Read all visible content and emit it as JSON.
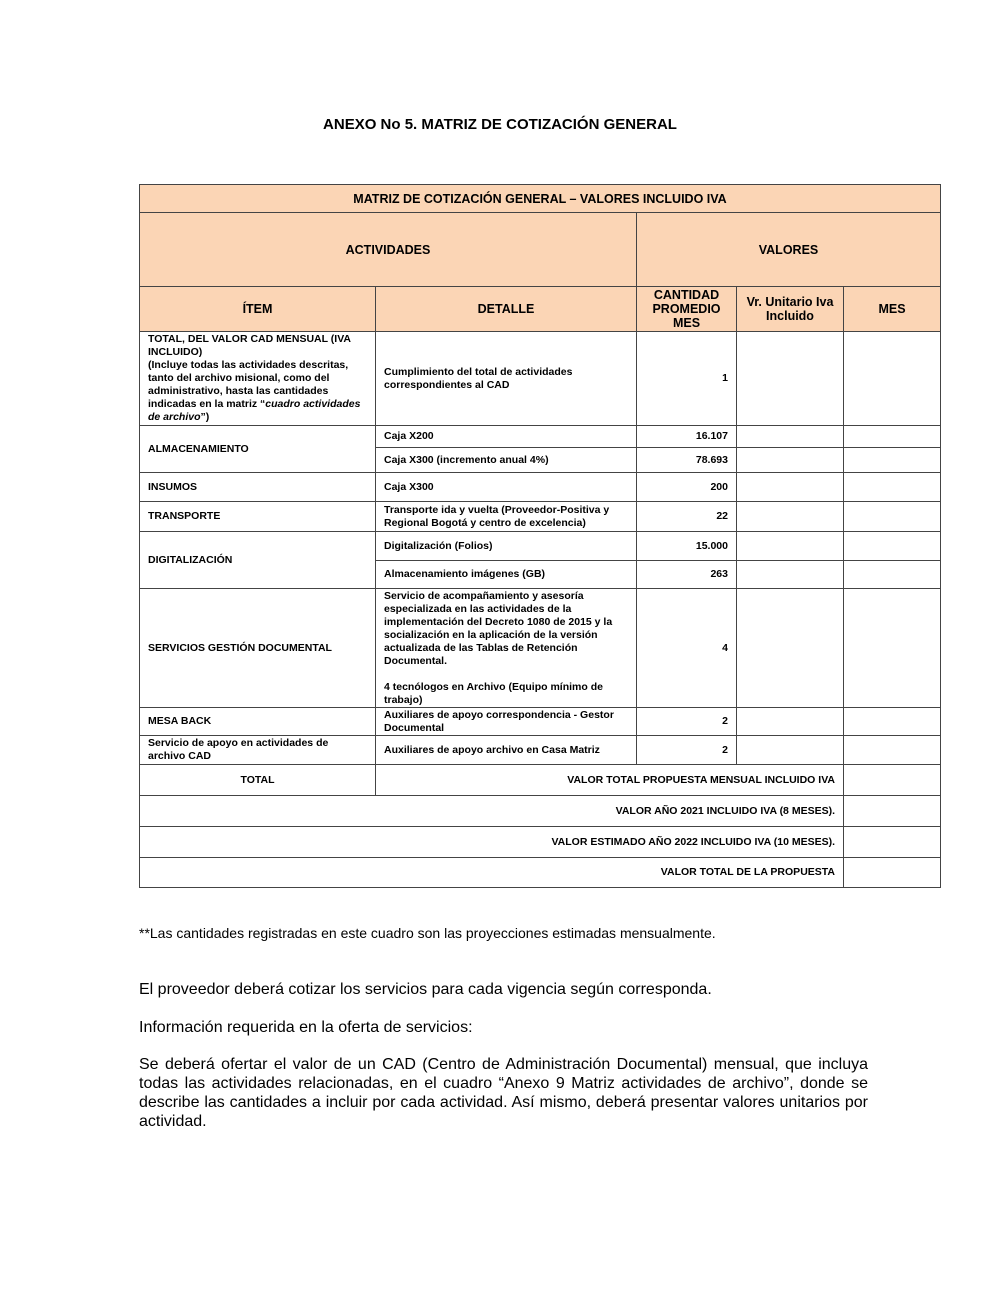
{
  "title": "ANEXO No 5. MATRIZ DE COTIZACIÓN GENERAL",
  "table": {
    "caption": "MATRIZ DE COTIZACIÓN GENERAL – VALORES INCLUIDO IVA",
    "group_actividades": "ACTIVIDADES",
    "group_valores": "VALORES",
    "headers": [
      "ÍTEM",
      "DETALLE",
      "CANTIDAD PROMEDIO MES",
      "Vr. Unitario Iva Incluido",
      "MES"
    ],
    "header_fill": "#FBD5B5",
    "row_total_cad": {
      "item_bold": "TOTAL, DEL VALOR CAD MENSUAL (IVA INCLUIDO)",
      "item_text": "(Incluye todas las actividades descritas, tanto del archivo misional, como del administrativo, hasta las cantidades indicadas en la matriz “",
      "item_italic": "cuadro actividades de archivo",
      "item_end": "”)",
      "detalle": "Cumplimiento del total de actividades correspondientes al CAD",
      "cantidad": "1"
    },
    "rows": [
      {
        "item": "ALMACENAMIENTO",
        "detalle": "Caja X200",
        "cantidad": "16.107"
      },
      {
        "item": "",
        "detalle": "Caja X300 (incremento anual 4%)",
        "cantidad": "78.693"
      },
      {
        "item": "INSUMOS",
        "detalle": "Caja X300",
        "cantidad": "200"
      },
      {
        "item": "TRANSPORTE",
        "detalle": "Transporte ida y vuelta (Proveedor-Positiva y Regional Bogotá y centro de excelencia)",
        "cantidad": "22"
      },
      {
        "item": "DIGITALIZACIÓN",
        "detalle": "Digitalización (Folios)",
        "cantidad": "15.000"
      },
      {
        "item": "",
        "detalle": "Almacenamiento imágenes (GB)",
        "cantidad": "263"
      },
      {
        "item": "SERVICIOS GESTIÓN DOCUMENTAL",
        "detalle": "Servicio de acompañamiento y asesoría especializada en las actividades de la implementación del Decreto 1080 de 2015 y la socialización en la aplicación de la versión actualizada de las Tablas de Retención Documental.",
        "detalle2": "4 tecnólogos en Archivo (Equipo mínimo de trabajo)",
        "cantidad": "4"
      },
      {
        "item": "MESA BACK",
        "detalle": "Auxiliares de apoyo correspondencia - Gestor Documental",
        "cantidad": "2"
      },
      {
        "item": "Servicio de apoyo en actividades de archivo CAD",
        "detalle": "Auxiliares de apoyo archivo en Casa Matriz",
        "cantidad": "2"
      }
    ],
    "total_label": "TOTAL",
    "total_mensual": "VALOR TOTAL PROPUESTA MENSUAL INCLUIDO IVA",
    "valor_2021": "VALOR AÑO 2021 INCLUIDO IVA (8 MESES).",
    "valor_2022": "VALOR ESTIMADO AÑO 2022 INCLUIDO IVA (10 MESES).",
    "valor_total": "VALOR TOTAL DE LA PROPUESTA"
  },
  "note": "**Las cantidades registradas en este cuadro son las proyecciones estimadas mensualmente.",
  "paragraphs": [
    "El proveedor deberá cotizar los servicios para cada vigencia según corresponda.",
    "Información requerida en la oferta de servicios:",
    "Se deberá ofertar el valor de un CAD (Centro de Administración Documental) mensual, que incluya todas las actividades relacionadas, en el cuadro “Anexo 9 Matriz actividades de archivo”, donde se describe las cantidades a incluir por cada actividad. Así mismo, deberá presentar valores unitarios por actividad."
  ]
}
